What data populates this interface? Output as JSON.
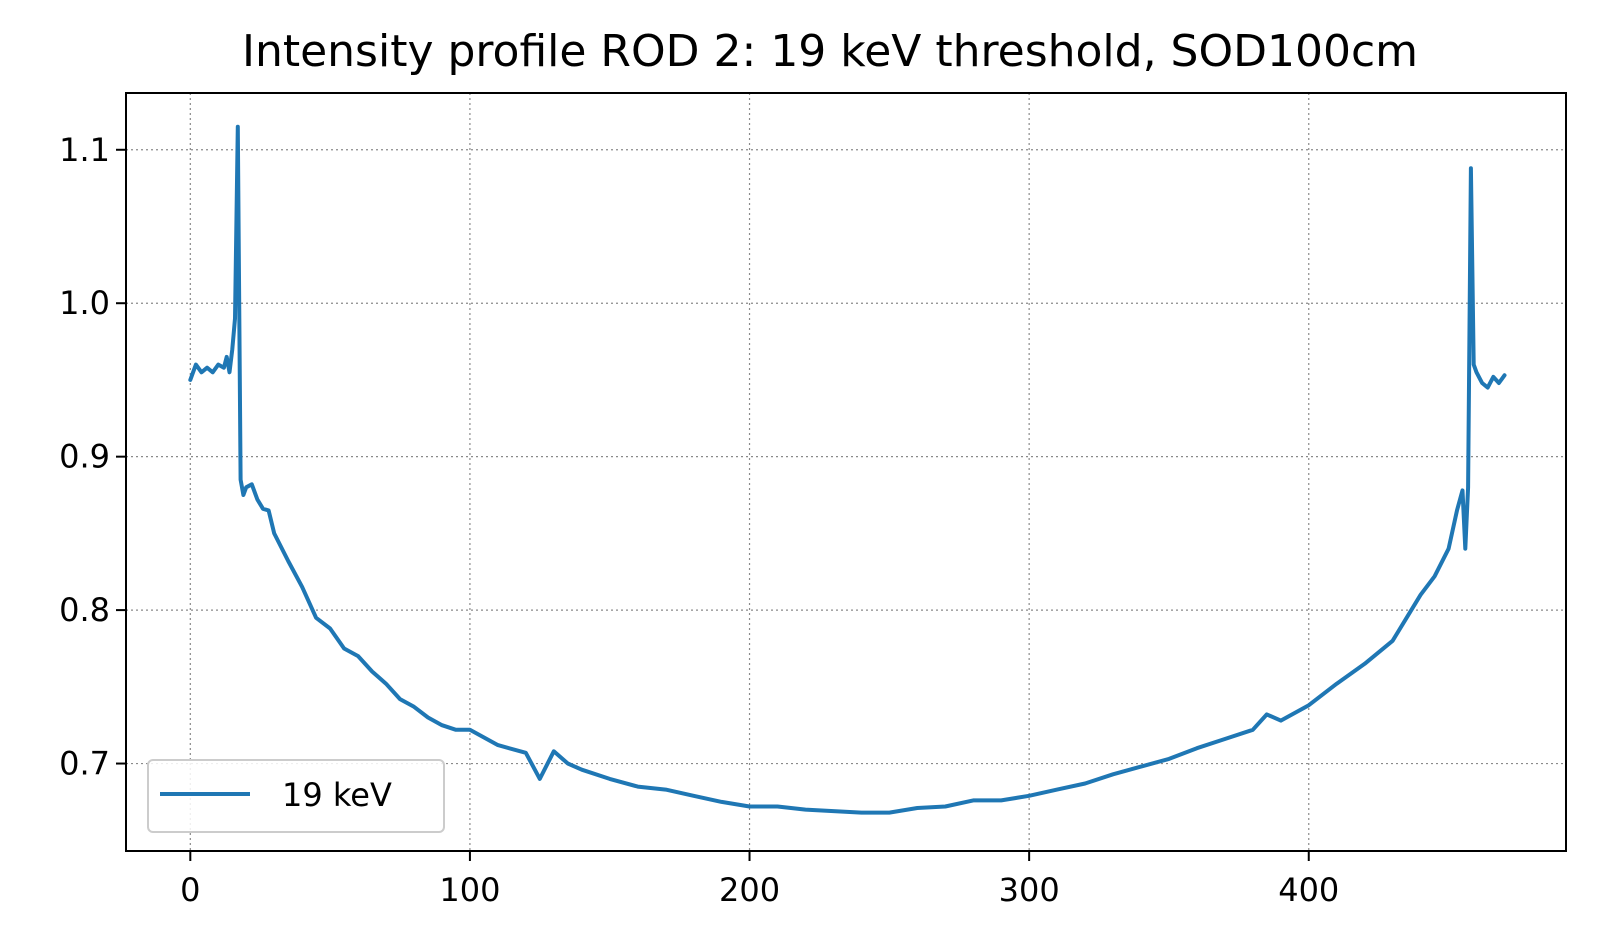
{
  "chart_data": {
    "type": "line",
    "title": "Intensity profile ROD 2: 19 keV threshold, SOD100cm",
    "xlabel": "",
    "ylabel": "",
    "xlim": [
      -23,
      492
    ],
    "ylim": [
      0.643,
      1.137
    ],
    "xticks": [
      0,
      100,
      200,
      300,
      400
    ],
    "yticks": [
      0.7,
      0.8,
      0.9,
      1.0,
      1.1
    ],
    "xtick_labels": [
      "0",
      "100",
      "200",
      "300",
      "400"
    ],
    "ytick_labels": [
      "0.7",
      "0.8",
      "0.9",
      "1.0",
      "1.1"
    ],
    "grid": true,
    "legend_position": "lower-left",
    "series": [
      {
        "name": "19 keV",
        "color": "#1f77b4",
        "x": [
          0,
          2,
          4,
          6,
          8,
          10,
          12,
          13,
          14,
          15,
          16,
          17,
          18,
          19,
          20,
          22,
          24,
          26,
          28,
          30,
          35,
          40,
          45,
          50,
          55,
          60,
          65,
          70,
          75,
          80,
          85,
          90,
          95,
          100,
          110,
          120,
          125,
          130,
          135,
          140,
          150,
          160,
          170,
          180,
          190,
          200,
          210,
          220,
          230,
          240,
          250,
          260,
          270,
          280,
          290,
          300,
          310,
          320,
          330,
          340,
          350,
          360,
          370,
          380,
          385,
          390,
          400,
          410,
          420,
          430,
          435,
          440,
          445,
          450,
          453,
          455,
          456,
          457,
          458,
          459,
          460,
          462,
          464,
          466,
          468,
          470
        ],
        "values": [
          0.95,
          0.96,
          0.955,
          0.958,
          0.955,
          0.96,
          0.958,
          0.965,
          0.955,
          0.97,
          0.99,
          1.115,
          0.885,
          0.875,
          0.88,
          0.882,
          0.872,
          0.866,
          0.865,
          0.85,
          0.832,
          0.815,
          0.795,
          0.788,
          0.775,
          0.77,
          0.76,
          0.752,
          0.742,
          0.737,
          0.73,
          0.725,
          0.722,
          0.722,
          0.712,
          0.707,
          0.69,
          0.708,
          0.7,
          0.696,
          0.69,
          0.685,
          0.683,
          0.679,
          0.675,
          0.672,
          0.672,
          0.67,
          0.669,
          0.668,
          0.668,
          0.671,
          0.672,
          0.676,
          0.676,
          0.679,
          0.683,
          0.687,
          0.693,
          0.698,
          0.703,
          0.71,
          0.716,
          0.722,
          0.732,
          0.728,
          0.738,
          0.752,
          0.765,
          0.78,
          0.795,
          0.81,
          0.822,
          0.84,
          0.865,
          0.878,
          0.84,
          0.88,
          1.088,
          0.96,
          0.955,
          0.948,
          0.945,
          0.952,
          0.948,
          0.953
        ]
      }
    ]
  }
}
